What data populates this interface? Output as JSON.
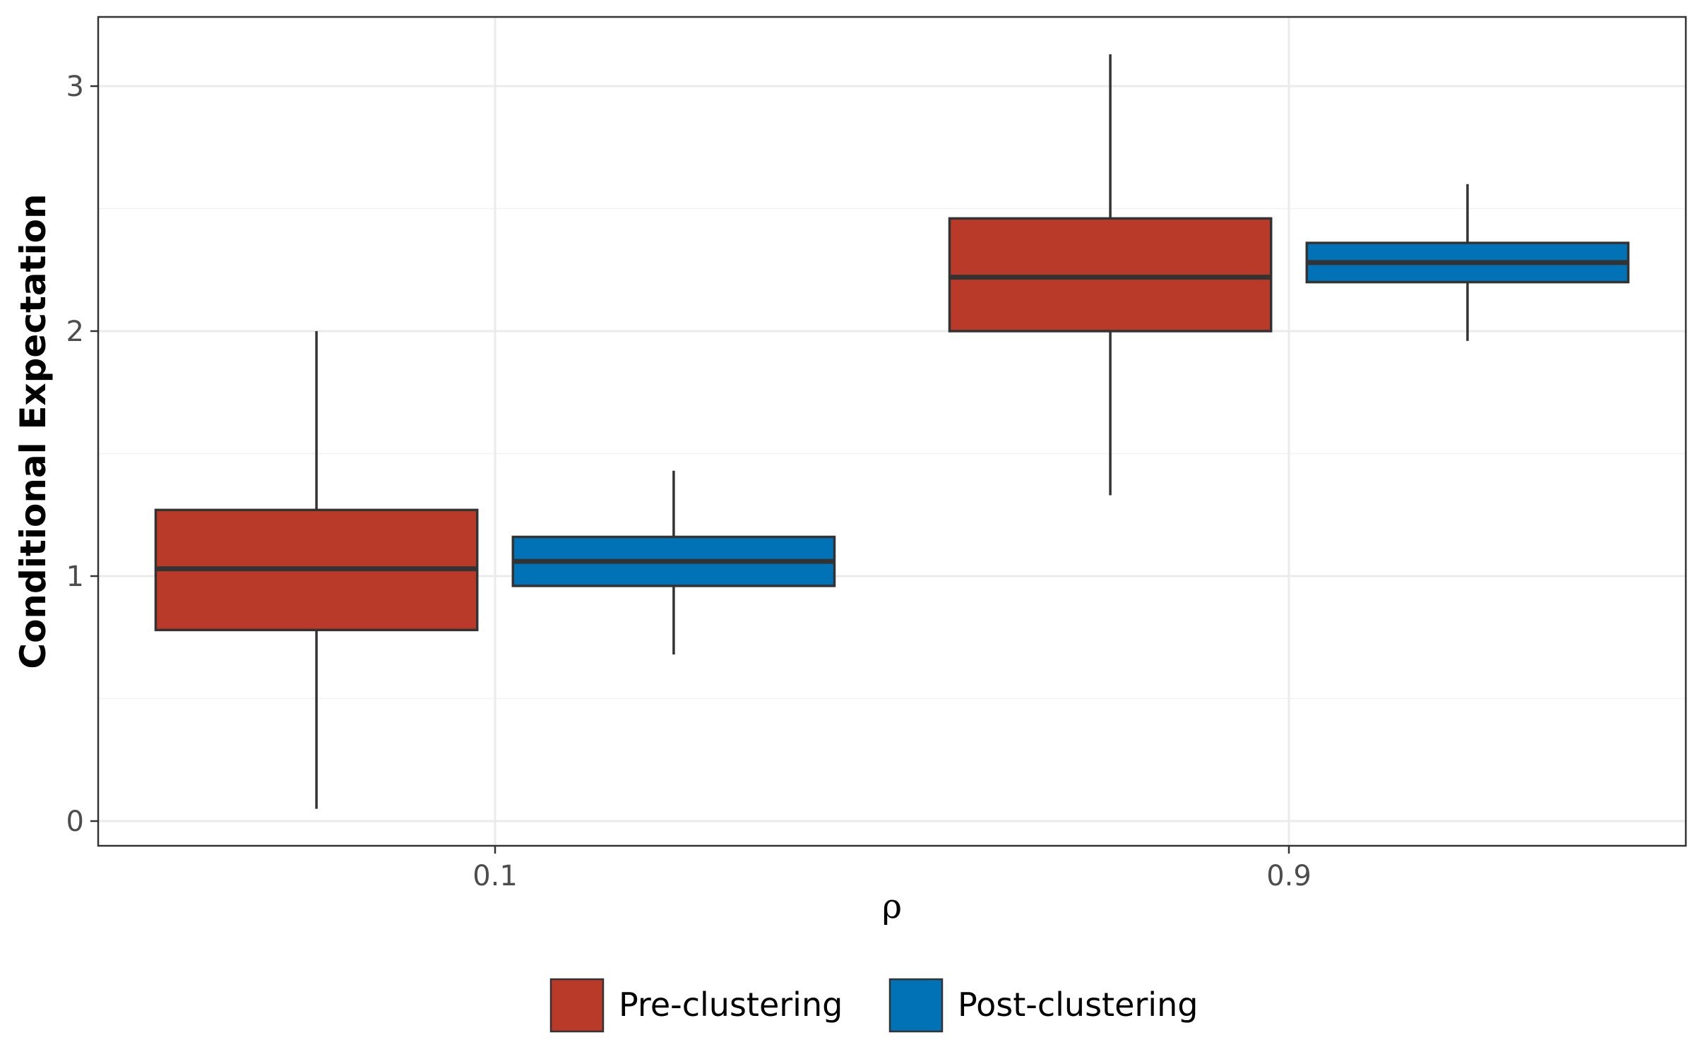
{
  "chart_data": {
    "type": "box",
    "xlabel": "ρ",
    "ylabel": "Conditional Expectation",
    "categories": [
      "0.1",
      "0.9"
    ],
    "ylim": [
      -0.1,
      3.25
    ],
    "yticks": [
      0,
      1,
      2,
      3
    ],
    "grid": true,
    "legend_position": "bottom",
    "series": [
      {
        "name": "Pre-clustering",
        "color": "#BA3A2A",
        "boxes": [
          {
            "category": "0.1",
            "min": 0.05,
            "q1": 0.78,
            "median": 1.03,
            "q3": 1.27,
            "max": 2.0
          },
          {
            "category": "0.9",
            "min": 1.33,
            "q1": 2.0,
            "median": 2.22,
            "q3": 2.46,
            "max": 3.13
          }
        ]
      },
      {
        "name": "Post-clustering",
        "color": "#0072B5",
        "boxes": [
          {
            "category": "0.1",
            "min": 0.68,
            "q1": 0.96,
            "median": 1.06,
            "q3": 1.16,
            "max": 1.43
          },
          {
            "category": "0.9",
            "min": 1.96,
            "q1": 2.2,
            "median": 2.28,
            "q3": 2.36,
            "max": 2.6
          }
        ]
      }
    ]
  }
}
